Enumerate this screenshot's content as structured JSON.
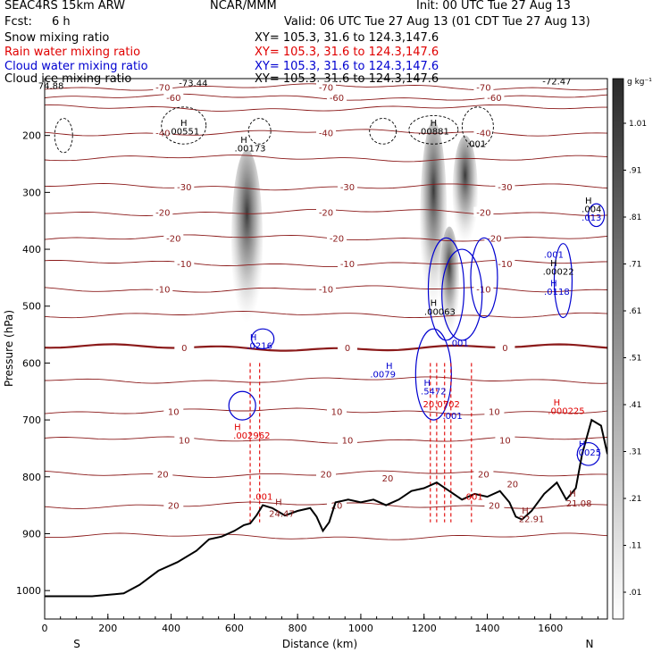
{
  "header": {
    "model": "SEAC4RS 15km ARW",
    "org": "NCAR/MMM",
    "init": "Init: 00 UTC Tue 27 Aug 13",
    "fcst_label": "Fcst:",
    "fcst_value": "6 h",
    "valid": "Valid: 06 UTC Tue 27 Aug 13 (01 CDT Tue 27 Aug 13)"
  },
  "fields": [
    {
      "name": "Snow mixing ratio",
      "xy": "",
      "color": "#000000"
    },
    {
      "name": "Rain water mixing ratio",
      "xy": "XY= 105.3, 31.6 to 124.3,147.6",
      "color": "#e00000"
    },
    {
      "name": "Cloud water mixing ratio",
      "xy": "XY= 105.3, 31.6 to 124.3,147.6",
      "color": "#0000d0"
    },
    {
      "name": "Cloud ice mixing ratio",
      "xy": "XY= 105.3, 31.6 to 124.3,147.6",
      "color": "#000000"
    }
  ],
  "snow_xy": "XY= 105.3, 31.6 to 124.3,147.6",
  "colors": {
    "temperature": "#8b1a1a",
    "rain": "#e00000",
    "cloud_water": "#0000d0",
    "terrain": "#000000"
  },
  "chart_data": {
    "type": "cross-section",
    "xlabel": "Distance (km)",
    "ylabel": "Pressure (hPa)",
    "xlim": [
      0,
      1780
    ],
    "ylim": [
      1050,
      100
    ],
    "xticks": [
      0,
      200,
      400,
      600,
      800,
      1000,
      1200,
      1400,
      1600
    ],
    "yticks": [
      200,
      300,
      400,
      500,
      600,
      700,
      800,
      900,
      1000
    ],
    "end_labels": {
      "left": "S",
      "right": "N"
    },
    "colorbar": {
      "unit": "g kg⁻¹",
      "levels": [
        "1.01",
        ".91",
        ".81",
        ".71",
        ".61",
        ".51",
        ".41",
        ".31",
        ".21",
        ".11",
        ".01"
      ]
    },
    "terrain": [
      {
        "x": 0,
        "p": 1010
      },
      {
        "x": 150,
        "p": 1010
      },
      {
        "x": 250,
        "p": 1005
      },
      {
        "x": 300,
        "p": 990
      },
      {
        "x": 360,
        "p": 965
      },
      {
        "x": 420,
        "p": 950
      },
      {
        "x": 480,
        "p": 930
      },
      {
        "x": 520,
        "p": 910
      },
      {
        "x": 560,
        "p": 905
      },
      {
        "x": 600,
        "p": 895
      },
      {
        "x": 630,
        "p": 885
      },
      {
        "x": 650,
        "p": 882
      },
      {
        "x": 670,
        "p": 868
      },
      {
        "x": 690,
        "p": 850
      },
      {
        "x": 720,
        "p": 855
      },
      {
        "x": 760,
        "p": 868
      },
      {
        "x": 800,
        "p": 860
      },
      {
        "x": 840,
        "p": 855
      },
      {
        "x": 860,
        "p": 870
      },
      {
        "x": 880,
        "p": 895
      },
      {
        "x": 900,
        "p": 880
      },
      {
        "x": 920,
        "p": 845
      },
      {
        "x": 960,
        "p": 840
      },
      {
        "x": 1000,
        "p": 845
      },
      {
        "x": 1040,
        "p": 840
      },
      {
        "x": 1080,
        "p": 850
      },
      {
        "x": 1120,
        "p": 840
      },
      {
        "x": 1160,
        "p": 825
      },
      {
        "x": 1200,
        "p": 820
      },
      {
        "x": 1240,
        "p": 810
      },
      {
        "x": 1280,
        "p": 825
      },
      {
        "x": 1320,
        "p": 840
      },
      {
        "x": 1360,
        "p": 830
      },
      {
        "x": 1400,
        "p": 835
      },
      {
        "x": 1440,
        "p": 825
      },
      {
        "x": 1470,
        "p": 845
      },
      {
        "x": 1490,
        "p": 870
      },
      {
        "x": 1510,
        "p": 875
      },
      {
        "x": 1540,
        "p": 860
      },
      {
        "x": 1580,
        "p": 830
      },
      {
        "x": 1620,
        "p": 810
      },
      {
        "x": 1650,
        "p": 840
      },
      {
        "x": 1680,
        "p": 820
      },
      {
        "x": 1700,
        "p": 760
      },
      {
        "x": 1730,
        "p": 700
      },
      {
        "x": 1760,
        "p": 710
      },
      {
        "x": 1780,
        "p": 760
      }
    ],
    "isotherms": [
      {
        "label": "-70",
        "p": 115
      },
      {
        "label": "-60",
        "p": 133
      },
      {
        "label": "",
        "p": 152
      },
      {
        "label": "-40",
        "p": 195
      },
      {
        "label": "",
        "p": 240
      },
      {
        "label": "-30",
        "p": 290
      },
      {
        "label": "-20",
        "p": 335
      },
      {
        "label": "-20",
        "p": 380
      },
      {
        "label": "-10",
        "p": 425
      },
      {
        "label": "-10",
        "p": 470
      },
      {
        "label": "",
        "p": 515
      },
      {
        "label": "0",
        "p": 573
      },
      {
        "label": "",
        "p": 630
      },
      {
        "label": "10",
        "p": 685
      },
      {
        "label": "10",
        "p": 735
      },
      {
        "label": "20",
        "p": 795
      },
      {
        "label": "20",
        "p": 850
      },
      {
        "label": "",
        "p": 905
      }
    ],
    "snow_plumes": [
      {
        "x": 640,
        "top": 225,
        "bottom": 545,
        "width": 35
      },
      {
        "x": 1230,
        "top": 175,
        "bottom": 520,
        "width": 30
      },
      {
        "x": 1330,
        "top": 200,
        "bottom": 400,
        "width": 28
      },
      {
        "x": 1280,
        "top": 360,
        "bottom": 560,
        "width": 22
      }
    ],
    "annotations": [
      {
        "text": "74.88",
        "x": 20,
        "p": 118,
        "color": "#000000"
      },
      {
        "text": "-73.44",
        "x": 470,
        "p": 113,
        "color": "#000000"
      },
      {
        "text": "-72.47",
        "x": 1620,
        "p": 110,
        "color": "#000000"
      },
      {
        "text": "H",
        "x": 440,
        "p": 183,
        "color": "#000000"
      },
      {
        "text": ".00551",
        "x": 440,
        "p": 198,
        "color": "#000000"
      },
      {
        "text": "H",
        "x": 630,
        "p": 213,
        "color": "#000000"
      },
      {
        "text": ".00173",
        "x": 650,
        "p": 228,
        "color": "#000000"
      },
      {
        "text": "H",
        "x": 1230,
        "p": 183,
        "color": "#000000"
      },
      {
        "text": ".00881",
        "x": 1230,
        "p": 198,
        "color": "#000000"
      },
      {
        "text": ".001",
        "x": 1365,
        "p": 220,
        "color": "#000000"
      },
      {
        "text": "H",
        "x": 1720,
        "p": 320,
        "color": "#000000"
      },
      {
        "text": ".004",
        "x": 1730,
        "p": 335,
        "color": "#000000"
      },
      {
        "text": ".013",
        "x": 1730,
        "p": 350,
        "color": "#0000d0"
      },
      {
        "text": ".001",
        "x": 1610,
        "p": 415,
        "color": "#0000d0"
      },
      {
        "text": "H",
        "x": 1610,
        "p": 430,
        "color": "#000000"
      },
      {
        "text": ".00022",
        "x": 1625,
        "p": 445,
        "color": "#000000"
      },
      {
        "text": "H",
        "x": 1610,
        "p": 465,
        "color": "#0000d0"
      },
      {
        "text": ".0118",
        "x": 1620,
        "p": 480,
        "color": "#0000d0"
      },
      {
        "text": "H",
        "x": 1230,
        "p": 500,
        "color": "#000000"
      },
      {
        "text": ".00063",
        "x": 1250,
        "p": 515,
        "color": "#000000"
      },
      {
        "text": "H",
        "x": 660,
        "p": 560,
        "color": "#0000d0"
      },
      {
        "text": ".0216",
        "x": 680,
        "p": 575,
        "color": "#0000d0"
      },
      {
        "text": ".001",
        "x": 1310,
        "p": 570,
        "color": "#0000d0"
      },
      {
        "text": "H",
        "x": 1090,
        "p": 610,
        "color": "#0000d0"
      },
      {
        "text": ".0079",
        "x": 1070,
        "p": 625,
        "color": "#0000d0"
      },
      {
        "text": "H",
        "x": 1210,
        "p": 640,
        "color": "#0000d0"
      },
      {
        "text": ".5472",
        "x": 1230,
        "p": 655,
        "color": "#0000d0"
      },
      {
        "text": "20.0702",
        "x": 1255,
        "p": 678,
        "color": "#e00000"
      },
      {
        "text": ".001",
        "x": 1290,
        "p": 698,
        "color": "#0000d0"
      },
      {
        "text": "H",
        "x": 1620,
        "p": 675,
        "color": "#e00000"
      },
      {
        "text": ".000225",
        "x": 1650,
        "p": 690,
        "color": "#e00000"
      },
      {
        "text": "H",
        "x": 610,
        "p": 718,
        "color": "#e00000"
      },
      {
        "text": ".002962",
        "x": 655,
        "p": 733,
        "color": "#e00000"
      },
      {
        "text": "H",
        "x": 1700,
        "p": 748,
        "color": "#0000d0"
      },
      {
        "text": ".0025",
        "x": 1720,
        "p": 763,
        "color": "#0000d0"
      },
      {
        "text": "20",
        "x": 1085,
        "p": 808,
        "color": "#8b1a1a"
      },
      {
        "text": ".001",
        "x": 690,
        "p": 840,
        "color": "#e00000"
      },
      {
        "text": "H",
        "x": 740,
        "p": 850,
        "color": "#8b1a1a"
      },
      {
        "text": "24.47",
        "x": 750,
        "p": 870,
        "color": "#8b1a1a"
      },
      {
        "text": ".001",
        "x": 1355,
        "p": 840,
        "color": "#e00000"
      },
      {
        "text": "20",
        "x": 1480,
        "p": 818,
        "color": "#8b1a1a"
      },
      {
        "text": "H",
        "x": 1520,
        "p": 865,
        "color": "#8b1a1a"
      },
      {
        "text": "22.91",
        "x": 1540,
        "p": 880,
        "color": "#8b1a1a"
      },
      {
        "text": "H",
        "x": 1670,
        "p": 835,
        "color": "#8b1a1a"
      },
      {
        "text": "21.08",
        "x": 1690,
        "p": 852,
        "color": "#8b1a1a"
      }
    ],
    "rain_columns": [
      650,
      680,
      1220,
      1240,
      1265,
      1285,
      1350
    ],
    "cloud_water_loops": [
      {
        "x": 625,
        "p1": 650,
        "p2": 700,
        "w": 30
      },
      {
        "x": 690,
        "p1": 540,
        "p2": 575,
        "w": 25
      },
      {
        "x": 1230,
        "p1": 540,
        "p2": 700,
        "w": 40
      },
      {
        "x": 1270,
        "p1": 380,
        "p2": 560,
        "w": 40
      },
      {
        "x": 1320,
        "p1": 400,
        "p2": 560,
        "w": 45
      },
      {
        "x": 1390,
        "p1": 380,
        "p2": 520,
        "w": 30
      },
      {
        "x": 1640,
        "p1": 390,
        "p2": 520,
        "w": 20
      },
      {
        "x": 1720,
        "p1": 740,
        "p2": 780,
        "w": 25
      },
      {
        "x": 1745,
        "p1": 320,
        "p2": 360,
        "w": 18
      }
    ],
    "ice_clouds": [
      {
        "x": 440,
        "p1": 150,
        "p2": 215,
        "w": 50
      },
      {
        "x": 680,
        "p1": 170,
        "p2": 215,
        "w": 25
      },
      {
        "x": 1230,
        "p1": 165,
        "p2": 215,
        "w": 55
      },
      {
        "x": 1370,
        "p1": 150,
        "p2": 220,
        "w": 35
      },
      {
        "x": 1070,
        "p1": 170,
        "p2": 215,
        "w": 30
      },
      {
        "x": 60,
        "p1": 170,
        "p2": 230,
        "w": 20
      }
    ]
  }
}
